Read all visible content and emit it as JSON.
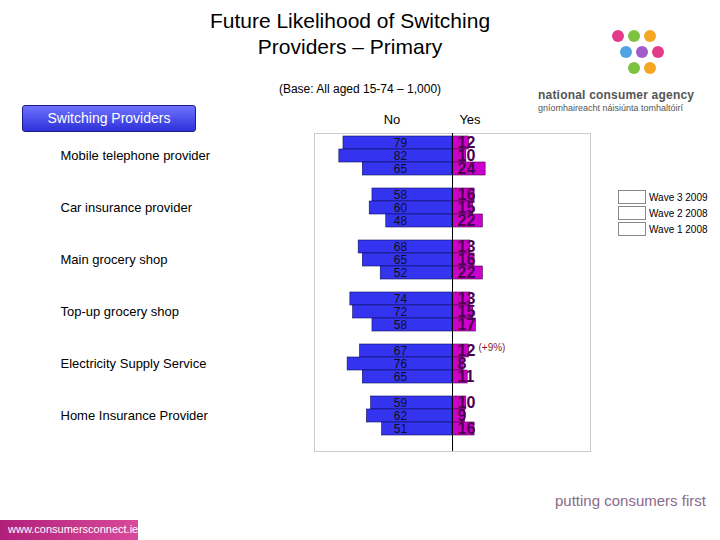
{
  "chart_data": {
    "type": "bar",
    "orientation": "horizontal",
    "title": "Future Likelihood of Switching Providers – Primary",
    "subtitle": "(Base: All aged 15-74 – 1,000)",
    "section_label": "Switching Providers",
    "categories": [
      "Mobile telephone provider",
      "Car insurance provider",
      "Main grocery shop",
      "Top-up grocery shop",
      "Electricity Supply Service",
      "Home Insurance Provider"
    ],
    "waves": [
      "Wave 3 2009",
      "Wave 2 2008",
      "Wave 1 2008"
    ],
    "series": [
      {
        "name": "No",
        "color": "#3434f0",
        "values": [
          [
            79,
            82,
            65
          ],
          [
            58,
            60,
            48
          ],
          [
            68,
            65,
            52
          ],
          [
            74,
            72,
            58
          ],
          [
            67,
            76,
            65
          ],
          [
            59,
            62,
            51
          ]
        ]
      },
      {
        "name": "Yes",
        "color": "#cc00cc",
        "values": [
          [
            12,
            10,
            24
          ],
          [
            16,
            15,
            22
          ],
          [
            13,
            16,
            22
          ],
          [
            13,
            15,
            17
          ],
          [
            12,
            8,
            11
          ],
          [
            10,
            9,
            16
          ]
        ]
      }
    ],
    "xlim": [
      0,
      100
    ],
    "tick_labels": false,
    "data_labels": true,
    "legend": "right",
    "annotations": [
      {
        "category": "Electricity Supply Service",
        "wave": "Wave 3 2009",
        "series": "Yes",
        "text": "(+9%)"
      }
    ],
    "logo": {
      "name": "national consumer agency",
      "name_irish": "gníomhaireacht náisiúnta tomhaltóirí"
    },
    "footer": {
      "slogan": "putting consumers first",
      "url": "www.consumersconnect.ie"
    }
  }
}
